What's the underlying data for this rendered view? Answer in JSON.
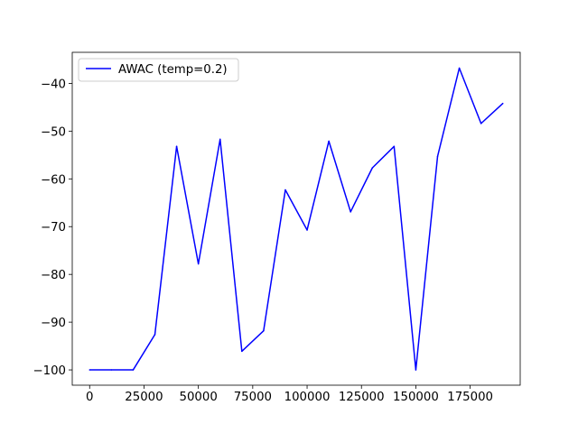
{
  "chart_data": {
    "type": "line",
    "title": "",
    "xlabel": "",
    "ylabel": "",
    "xlim": [
      -8000,
      198000
    ],
    "ylim": [
      -103.2,
      -33.5
    ],
    "x_ticks": [
      0,
      25000,
      50000,
      75000,
      100000,
      125000,
      150000,
      175000
    ],
    "y_ticks": [
      -100,
      -90,
      -80,
      -70,
      -60,
      -50,
      -40
    ],
    "legend_position": "top-left",
    "series": [
      {
        "name": "AWAC (temp=0.2)",
        "color": "#0000ff",
        "x": [
          0,
          10000,
          20000,
          30000,
          40000,
          50000,
          60000,
          70000,
          80000,
          90000,
          100000,
          110000,
          120000,
          130000,
          140000,
          150000,
          160000,
          170000,
          180000,
          190000
        ],
        "y": [
          -100,
          -100,
          -100,
          -92.6,
          -53.2,
          -77.8,
          -51.7,
          -96.1,
          -91.8,
          -62.3,
          -70.7,
          -52.1,
          -66.9,
          -57.7,
          -53.2,
          -100,
          -55.3,
          -36.8,
          -48.4,
          -44.2
        ]
      }
    ]
  }
}
